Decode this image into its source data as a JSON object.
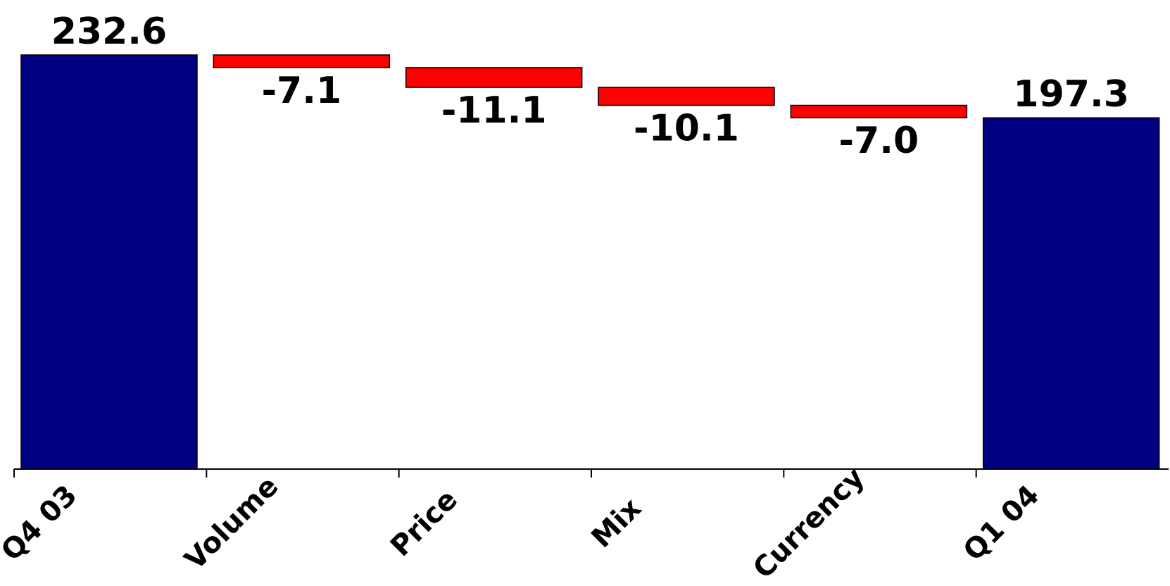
{
  "chart_data": {
    "type": "bar",
    "subtype": "waterfall",
    "categories": [
      "Q4 03",
      "Volume",
      "Price",
      "Mix",
      "Currency",
      "Q1 04"
    ],
    "values": [
      232.6,
      -7.1,
      -11.1,
      -10.1,
      -7.0,
      197.3
    ],
    "kinds": [
      "total",
      "delta",
      "delta",
      "delta",
      "delta",
      "total"
    ],
    "labels": [
      "232.6",
      "-7.1",
      "-11.1",
      "-10.1",
      "-7.0",
      "197.3"
    ],
    "title": "",
    "xlabel": "",
    "ylabel": "",
    "ylim": [
      0,
      232.6
    ],
    "grid": false,
    "legend": "none",
    "colors": {
      "total": "#000080",
      "decrease": "#ff0000",
      "axis": "#000000"
    }
  }
}
